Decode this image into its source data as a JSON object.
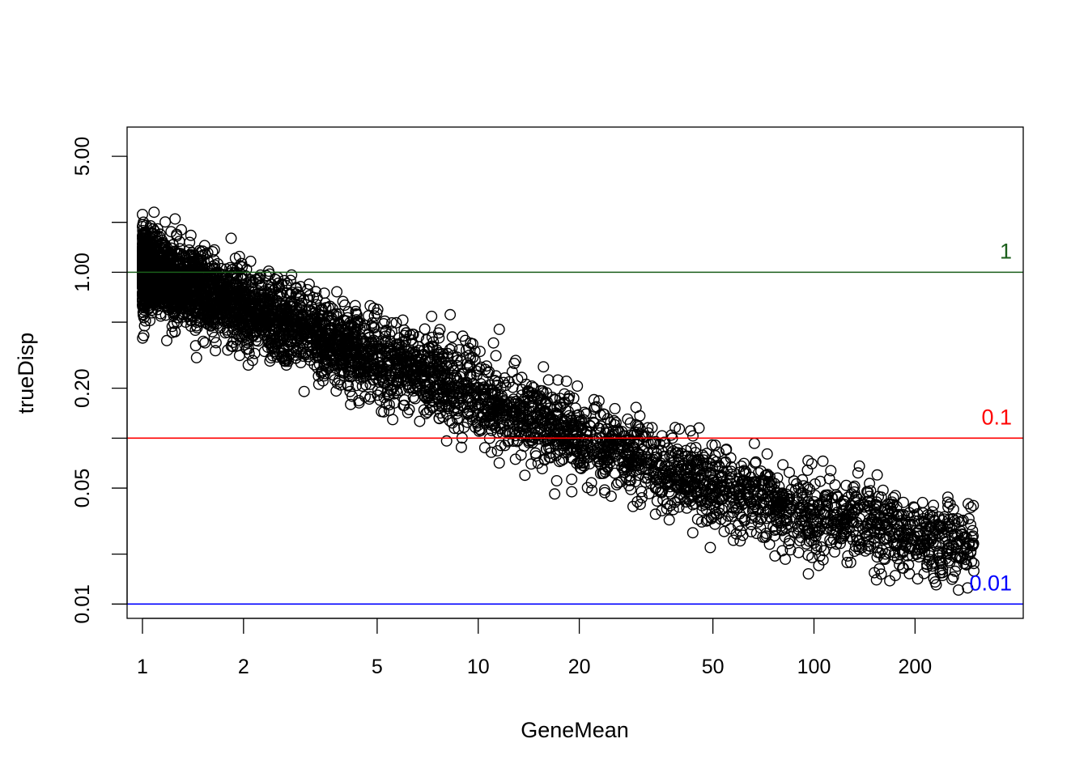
{
  "chart_data": {
    "type": "scatter",
    "title": "",
    "xlabel": "GeneMean",
    "ylabel": "trueDisp",
    "x_scale": "log",
    "y_scale": "log",
    "xlim": [
      0.9,
      420
    ],
    "ylim": [
      0.0082,
      7.5
    ],
    "x_ticks": [
      1,
      2,
      5,
      10,
      20,
      50,
      100,
      200
    ],
    "x_tick_labels": [
      "1",
      "2",
      "5",
      "10",
      "20",
      "50",
      "100",
      "200"
    ],
    "y_ticks": [
      0.01,
      0.02,
      0.05,
      0.1,
      0.2,
      0.5,
      1,
      2,
      5
    ],
    "y_tick_labels": [
      "0.01",
      "",
      "0.05",
      "",
      "0.20",
      "",
      "1.00",
      "",
      "5.00"
    ],
    "grid": false,
    "marker": "open-circle",
    "point_color": "#000000",
    "trend": {
      "description_points": [
        [
          1,
          1.05
        ],
        [
          2,
          0.6
        ],
        [
          5,
          0.3
        ],
        [
          10,
          0.18
        ],
        [
          20,
          0.1
        ],
        [
          50,
          0.05
        ],
        [
          100,
          0.035
        ],
        [
          200,
          0.026
        ]
      ],
      "spread_log10": 0.12,
      "n_points": 5000
    },
    "reference_lines": [
      {
        "label": "1",
        "y": 1,
        "color": "#1a5e1a"
      },
      {
        "label": "0.1",
        "y": 0.1,
        "color": "#ff0000"
      },
      {
        "label": "0.01",
        "y": 0.01,
        "color": "#0000ff"
      }
    ],
    "x_range_points": [
      1,
      300
    ]
  }
}
